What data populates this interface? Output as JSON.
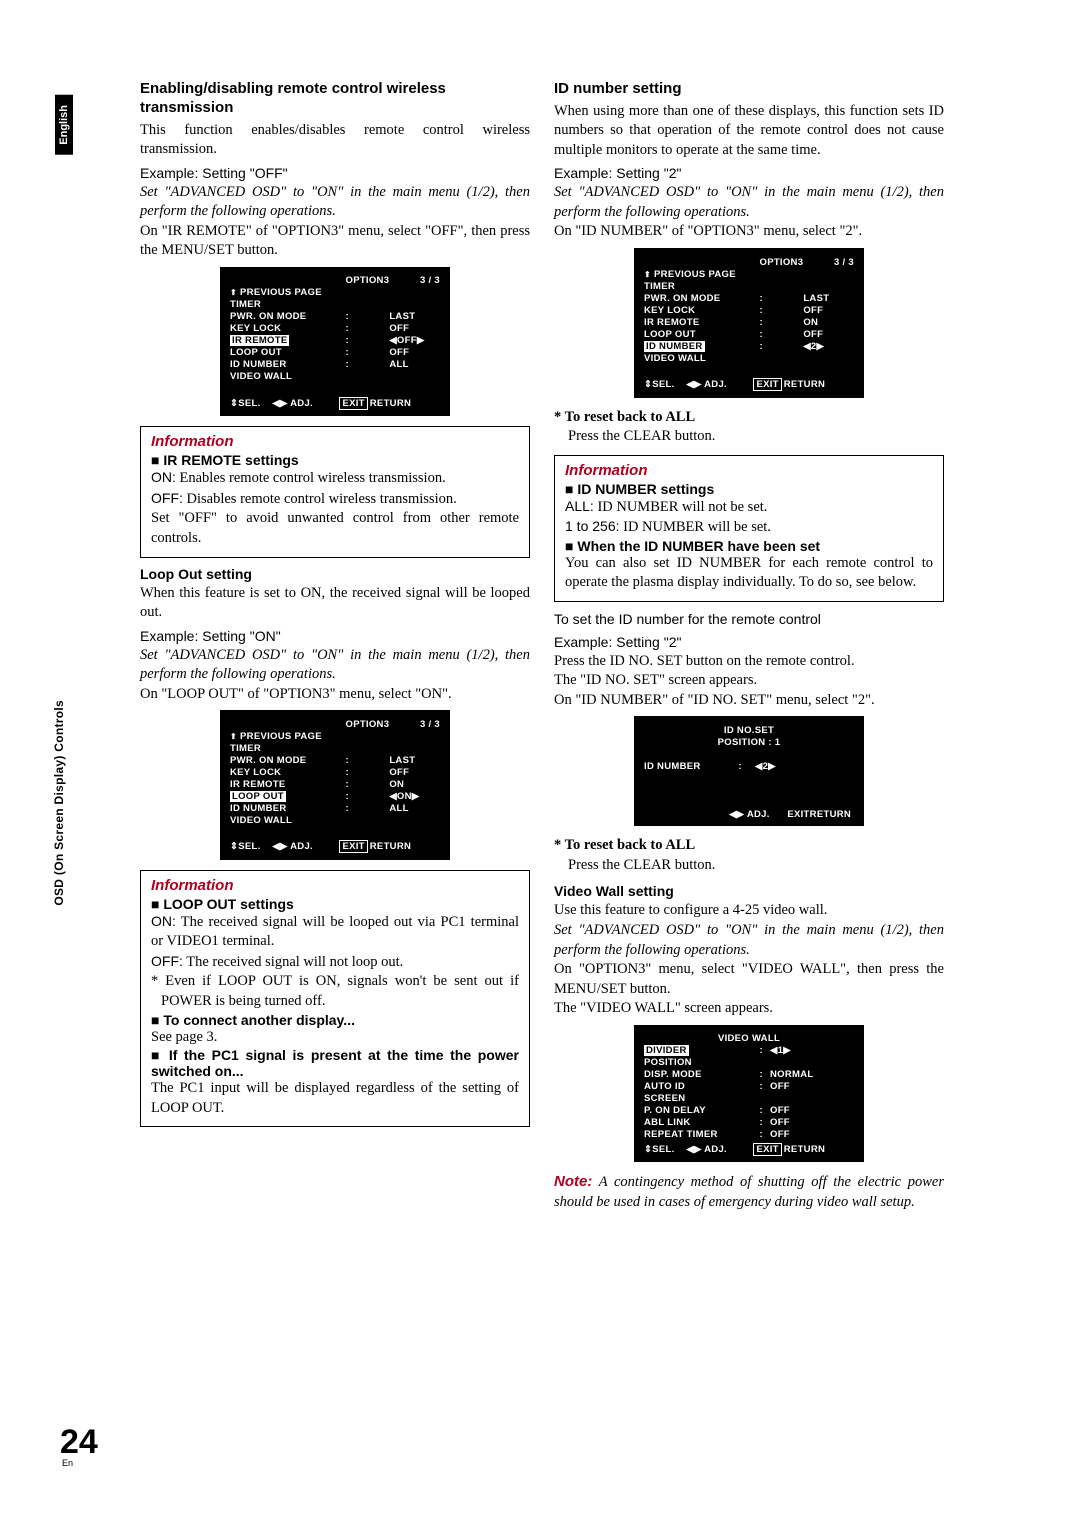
{
  "lang_tab": "English",
  "side_label": "OSD (On Screen Display) Controls",
  "page_number": "24",
  "page_lang": "En",
  "left": {
    "s1": {
      "title": "Enabling/disabling remote control wireless transmission",
      "p1": "This function enables/disables remote control wireless transmission.",
      "ex": "Example: Setting \"OFF\"",
      "setline": "Set \"ADVANCED OSD\" to \"ON\" in the main menu (1/2), then perform the following operations.",
      "p2": "On \"IR REMOTE\" of \"OPTION3\" menu, select \"OFF\", then press the MENU/SET button."
    },
    "osd1": {
      "title": "OPTION3",
      "page": "3 / 3",
      "prev": "PREVIOUS PAGE",
      "rows": [
        {
          "k": "TIMER",
          "v": ""
        },
        {
          "k": "PWR. ON MODE",
          "s": ":",
          "v": "LAST"
        },
        {
          "k": "KEY LOCK",
          "s": ":",
          "v": "OFF"
        },
        {
          "k": "IR REMOTE",
          "s": ":",
          "v": "OFF",
          "hi": true,
          "arrows": true
        },
        {
          "k": "LOOP OUT",
          "s": ":",
          "v": "OFF"
        },
        {
          "k": "ID NUMBER",
          "s": ":",
          "v": "ALL"
        },
        {
          "k": "VIDEO WALL",
          "v": ""
        }
      ]
    },
    "info1": {
      "title": "Information",
      "head": "IR REMOTE settings",
      "on": "ON:",
      "on_t": " Enables remote control wireless transmission.",
      "off": "OFF:",
      "off_t": " Disables remote control wireless transmission.",
      "p": "Set \"OFF\" to avoid unwanted control from other remote controls."
    },
    "s2": {
      "title": "Loop Out setting",
      "p1": "When this feature is set to ON, the received signal will be looped out.",
      "ex": "Example: Setting \"ON\"",
      "setline": "Set \"ADVANCED OSD\" to \"ON\" in the main menu (1/2), then perform the following operations.",
      "p2": "On \"LOOP OUT\" of \"OPTION3\" menu, select \"ON\"."
    },
    "osd2": {
      "title": "OPTION3",
      "page": "3 / 3",
      "prev": "PREVIOUS PAGE",
      "rows": [
        {
          "k": "TIMER",
          "v": ""
        },
        {
          "k": "PWR. ON MODE",
          "s": ":",
          "v": "LAST"
        },
        {
          "k": "KEY LOCK",
          "s": ":",
          "v": "OFF"
        },
        {
          "k": "IR REMOTE",
          "s": ":",
          "v": "ON"
        },
        {
          "k": "LOOP OUT",
          "s": ":",
          "v": "ON",
          "hi": true,
          "arrows": true
        },
        {
          "k": "ID NUMBER",
          "s": ":",
          "v": "ALL"
        },
        {
          "k": "VIDEO WALL",
          "v": ""
        }
      ]
    },
    "info2": {
      "title": "Information",
      "head": "LOOP OUT settings",
      "on": "ON:",
      "on_t": " The received signal will be looped out via PC1 terminal or VIDEO1 terminal.",
      "off": "OFF:",
      "off_t": " The received signal will not loop out.",
      "star": "* Even if LOOP OUT is ON, signals won't be sent out if POWER is being turned off.",
      "h2": "To connect another display...",
      "p2": "See page 3.",
      "h3": "If the PC1 signal is present at the time the power switched on...",
      "p3": "The PC1 input will be displayed regardless of the setting of LOOP OUT."
    }
  },
  "right": {
    "s1": {
      "title": "ID number setting",
      "p1": "When using more than one of these displays, this function sets ID numbers so that operation of the remote control does not cause multiple monitors to operate at the same time.",
      "ex": "Example: Setting \"2\"",
      "setline": "Set \"ADVANCED OSD\" to \"ON\" in the main menu (1/2), then perform the following operations.",
      "p2": "On \"ID NUMBER\" of \"OPTION3\" menu, select \"2\"."
    },
    "osd1": {
      "title": "OPTION3",
      "page": "3 / 3",
      "prev": "PREVIOUS PAGE",
      "rows": [
        {
          "k": "TIMER",
          "v": ""
        },
        {
          "k": "PWR. ON MODE",
          "s": ":",
          "v": "LAST"
        },
        {
          "k": "KEY LOCK",
          "s": ":",
          "v": "OFF"
        },
        {
          "k": "IR REMOTE",
          "s": ":",
          "v": "ON"
        },
        {
          "k": "LOOP OUT",
          "s": ":",
          "v": "OFF"
        },
        {
          "k": "ID NUMBER",
          "s": ":",
          "v": "2",
          "hi": true,
          "arrows": true
        },
        {
          "k": "VIDEO WALL",
          "v": ""
        }
      ]
    },
    "reset1": {
      "star": "*  To reset back to ALL",
      "p": "Press the CLEAR button."
    },
    "info1": {
      "title": "Information",
      "head": "ID NUMBER settings",
      "all": "ALL:",
      "all_t": " ID NUMBER will not be set.",
      "r": "1 to 256:",
      "r_t": " ID NUMBER will be set.",
      "h2": "When the ID NUMBER have been set",
      "p2": "You can also set ID NUMBER for each remote control to operate the plasma display individually. To do so, see below."
    },
    "sub": "To set the ID number for the remote control",
    "ex2": "Example: Setting \"2\"",
    "p3a": "Press the ID NO. SET button on the remote control.",
    "p3b": "The \"ID NO. SET\" screen appears.",
    "p3c": "On \"ID NUMBER\" of \"ID NO. SET\" menu, select \"2\".",
    "osd2": {
      "title": "ID NO.SET",
      "pos": "POSITION  :     1",
      "row_k": "ID NUMBER",
      "row_v": "2"
    },
    "reset2": {
      "star": "*  To reset back to ALL",
      "p": "Press the CLEAR button."
    },
    "s2": {
      "title": "Video Wall setting",
      "p1": "Use this feature to configure a 4-25 video wall.",
      "setline": "Set \"ADVANCED OSD\" to \"ON\" in the main menu (1/2), then perform the following operations.",
      "p2": "On \"OPTION3\" menu, select \"VIDEO WALL\", then press the MENU/SET button.",
      "p3": "The \"VIDEO WALL\" screen appears."
    },
    "osd3": {
      "title": "VIDEO WALL",
      "rows": [
        {
          "k": "DIVIDER",
          "s": ":",
          "v": "1",
          "hi": true,
          "arrows": true
        },
        {
          "k": "POSITION",
          "v": ""
        },
        {
          "k": "DISP. MODE",
          "s": ":",
          "v": "NORMAL"
        },
        {
          "k": "AUTO ID",
          "s": ":",
          "v": "OFF"
        },
        {
          "k": "SCREEN",
          "v": ""
        },
        {
          "k": "P. ON DELAY",
          "s": ":",
          "v": "OFF"
        },
        {
          "k": "ABL LINK",
          "s": ":",
          "v": "OFF"
        },
        {
          "k": "REPEAT TIMER",
          "s": ":",
          "v": "OFF"
        }
      ]
    },
    "note": "Note:",
    "note_t": " A contingency method of shutting off the electric power should be used in cases of emergency during video wall setup."
  },
  "footer": {
    "sel": "SEL.",
    "adj": "ADJ.",
    "exit": "EXIT",
    "ret": "RETURN"
  }
}
